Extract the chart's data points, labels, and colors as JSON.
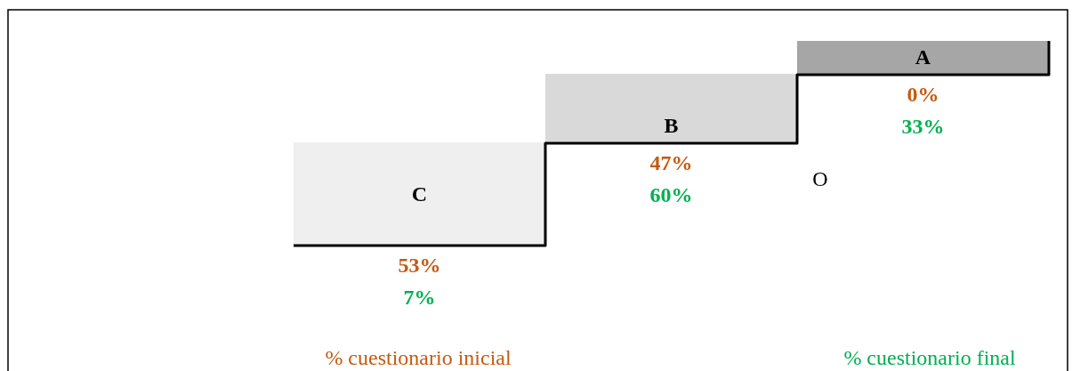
{
  "chart_data": {
    "type": "other",
    "categories": [
      "C",
      "B",
      "A"
    ],
    "colors": [
      "#efefef",
      "#d9d9d9",
      "#a6a6a6"
    ],
    "series": [
      {
        "name": "% cuestionario inicial",
        "color": "#c55a11",
        "values": [
          53,
          47,
          0
        ],
        "value_labels": [
          "53%",
          "47%",
          "0%"
        ]
      },
      {
        "name": "% cuestionario final",
        "color": "#00b050",
        "values": [
          7,
          60,
          33
        ],
        "value_labels": [
          "7%",
          "60%",
          "33%"
        ]
      }
    ],
    "annotations": [
      "O"
    ]
  }
}
